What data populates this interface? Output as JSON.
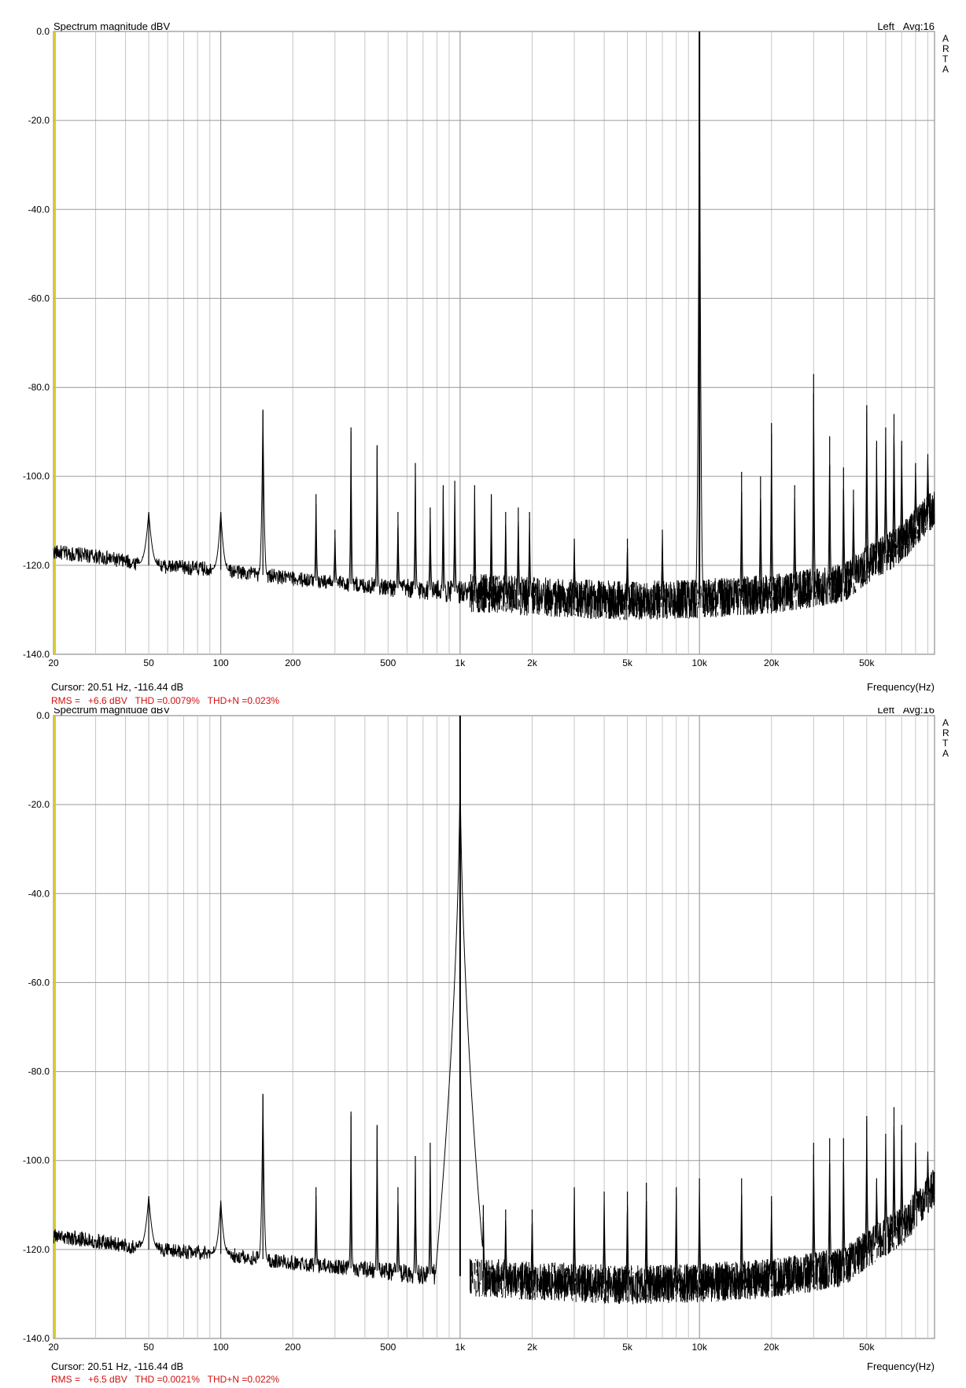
{
  "chart_data": [
    {
      "type": "line",
      "title": "Spectrum magnitude dBV",
      "channel": "Left",
      "averaging": "Avg:16",
      "brand": "ARTA",
      "xlabel": "Frequency(Hz)",
      "x_scale": "log",
      "xlim": [
        20,
        96000
      ],
      "ylim": [
        -140,
        0
      ],
      "grid": true,
      "x_ticks": [
        [
          "20",
          20
        ],
        [
          "50",
          50
        ],
        [
          "100",
          100
        ],
        [
          "200",
          200
        ],
        [
          "500",
          500
        ],
        [
          "1k",
          1000
        ],
        [
          "2k",
          2000
        ],
        [
          "5k",
          5000
        ],
        [
          "10k",
          10000
        ],
        [
          "20k",
          20000
        ],
        [
          "50k",
          50000
        ]
      ],
      "y_ticks": [
        "0.0",
        "-20.0",
        "-40.0",
        "-60.0",
        "-80.0",
        "-100.0",
        "-120.0",
        "-140.0"
      ],
      "cursor_text": "Cursor: 20.51 Hz, -116.44 dB",
      "stats_text": "RMS =   +6.6 dBV   THD =0.0079%   THD+N =0.023%",
      "fundamental_hz": 10000,
      "series": [
        {
          "color": "#000000",
          "floor": [
            [
              20,
              -117
            ],
            [
              30,
              -118
            ],
            [
              50,
              -120
            ],
            [
              100,
              -121
            ],
            [
              200,
              -123
            ],
            [
              500,
              -125
            ],
            [
              1000,
              -126
            ],
            [
              2000,
              -127
            ],
            [
              5000,
              -128
            ],
            [
              10000,
              -127.5
            ],
            [
              20000,
              -126.5
            ],
            [
              40000,
              -124
            ],
            [
              50000,
              -120
            ],
            [
              70000,
              -115
            ],
            [
              96000,
              -107
            ]
          ],
          "noise_band": 4,
          "peaks": [
            [
              10000,
              0,
              0.02
            ],
            [
              50,
              -108,
              0.05
            ],
            [
              100,
              -108,
              0.04
            ],
            [
              150,
              -85,
              0.02
            ],
            [
              250,
              -104,
              0.01
            ],
            [
              300,
              -112,
              0.01
            ],
            [
              350,
              -89,
              0.01
            ],
            [
              450,
              -93,
              0.01
            ],
            [
              550,
              -108,
              0.01
            ],
            [
              650,
              -97,
              0.01
            ],
            [
              750,
              -107,
              0.01
            ],
            [
              850,
              -102,
              0.01
            ],
            [
              950,
              -101,
              0.01
            ],
            [
              1150,
              -102,
              0.01
            ],
            [
              1350,
              -104,
              0.01
            ],
            [
              1550,
              -108,
              0.01
            ],
            [
              1750,
              -107,
              0.01
            ],
            [
              1950,
              -108,
              0.01
            ],
            [
              3000,
              -114,
              0.01
            ],
            [
              5000,
              -114,
              0.01
            ],
            [
              7000,
              -112,
              0.01
            ],
            [
              15000,
              -99,
              0.01
            ],
            [
              18000,
              -100,
              0.01
            ],
            [
              20000,
              -88,
              0.01
            ],
            [
              25000,
              -102,
              0.01
            ],
            [
              30000,
              -77,
              0.01
            ],
            [
              35000,
              -91,
              0.01
            ],
            [
              40000,
              -98,
              0.01
            ],
            [
              44000,
              -103,
              0.01
            ],
            [
              50000,
              -84,
              0.01
            ],
            [
              55000,
              -92,
              0.01
            ],
            [
              60000,
              -89,
              0.01
            ],
            [
              65000,
              -86,
              0.01
            ],
            [
              70000,
              -92,
              0.01
            ],
            [
              80000,
              -97,
              0.01
            ],
            [
              90000,
              -95,
              0.01
            ]
          ]
        }
      ]
    },
    {
      "type": "line",
      "title": "Spectrum magnitude dBV",
      "channel": "Left",
      "averaging": "Avg:16",
      "brand": "ARTA",
      "xlabel": "Frequency(Hz)",
      "x_scale": "log",
      "xlim": [
        20,
        96000
      ],
      "ylim": [
        -140,
        0
      ],
      "grid": true,
      "x_ticks": [
        [
          "20",
          20
        ],
        [
          "50",
          50
        ],
        [
          "100",
          100
        ],
        [
          "200",
          200
        ],
        [
          "500",
          500
        ],
        [
          "1k",
          1000
        ],
        [
          "2k",
          2000
        ],
        [
          "5k",
          5000
        ],
        [
          "10k",
          10000
        ],
        [
          "20k",
          20000
        ],
        [
          "50k",
          50000
        ]
      ],
      "y_ticks": [
        "0.0",
        "-20.0",
        "-40.0",
        "-60.0",
        "-80.0",
        "-100.0",
        "-120.0",
        "-140.0"
      ],
      "cursor_text": "Cursor: 20.51 Hz, -116.44 dB",
      "stats_text": "RMS =   +6.5 dBV   THD =0.0021%   THD+N =0.022%",
      "fundamental_hz": 1000,
      "series": [
        {
          "color": "#000000",
          "floor": [
            [
              20,
              -117
            ],
            [
              30,
              -118
            ],
            [
              50,
              -120
            ],
            [
              100,
              -121
            ],
            [
              200,
              -123
            ],
            [
              500,
              -125
            ],
            [
              1000,
              -126
            ],
            [
              2000,
              -127
            ],
            [
              5000,
              -128
            ],
            [
              10000,
              -127.5
            ],
            [
              20000,
              -126.5
            ],
            [
              40000,
              -124
            ],
            [
              50000,
              -120
            ],
            [
              70000,
              -115
            ],
            [
              96000,
              -106
            ]
          ],
          "noise_band": 4,
          "peaks": [
            [
              1000,
              0,
              0.015
            ],
            [
              50,
              -108,
              0.05
            ],
            [
              100,
              -109,
              0.04
            ],
            [
              150,
              -85,
              0.02
            ],
            [
              250,
              -106,
              0.01
            ],
            [
              350,
              -89,
              0.01
            ],
            [
              450,
              -92,
              0.01
            ],
            [
              550,
              -106,
              0.01
            ],
            [
              650,
              -99,
              0.01
            ],
            [
              750,
              -96,
              0.01
            ],
            [
              1250,
              -110,
              0.01
            ],
            [
              1550,
              -111,
              0.01
            ],
            [
              2000,
              -111,
              0.01
            ],
            [
              3000,
              -106,
              0.01
            ],
            [
              4000,
              -107,
              0.01
            ],
            [
              5000,
              -107,
              0.01
            ],
            [
              6000,
              -105,
              0.01
            ],
            [
              8000,
              -106,
              0.01
            ],
            [
              10000,
              -104,
              0.01
            ],
            [
              15000,
              -104,
              0.01
            ],
            [
              20000,
              -108,
              0.01
            ],
            [
              30000,
              -96,
              0.01
            ],
            [
              35000,
              -95,
              0.01
            ],
            [
              40000,
              -95,
              0.01
            ],
            [
              50000,
              -90,
              0.01
            ],
            [
              55000,
              -104,
              0.01
            ],
            [
              60000,
              -94,
              0.01
            ],
            [
              65000,
              -88,
              0.01
            ],
            [
              70000,
              -92,
              0.01
            ],
            [
              80000,
              -96,
              0.01
            ],
            [
              90000,
              -98,
              0.01
            ]
          ]
        }
      ]
    }
  ]
}
